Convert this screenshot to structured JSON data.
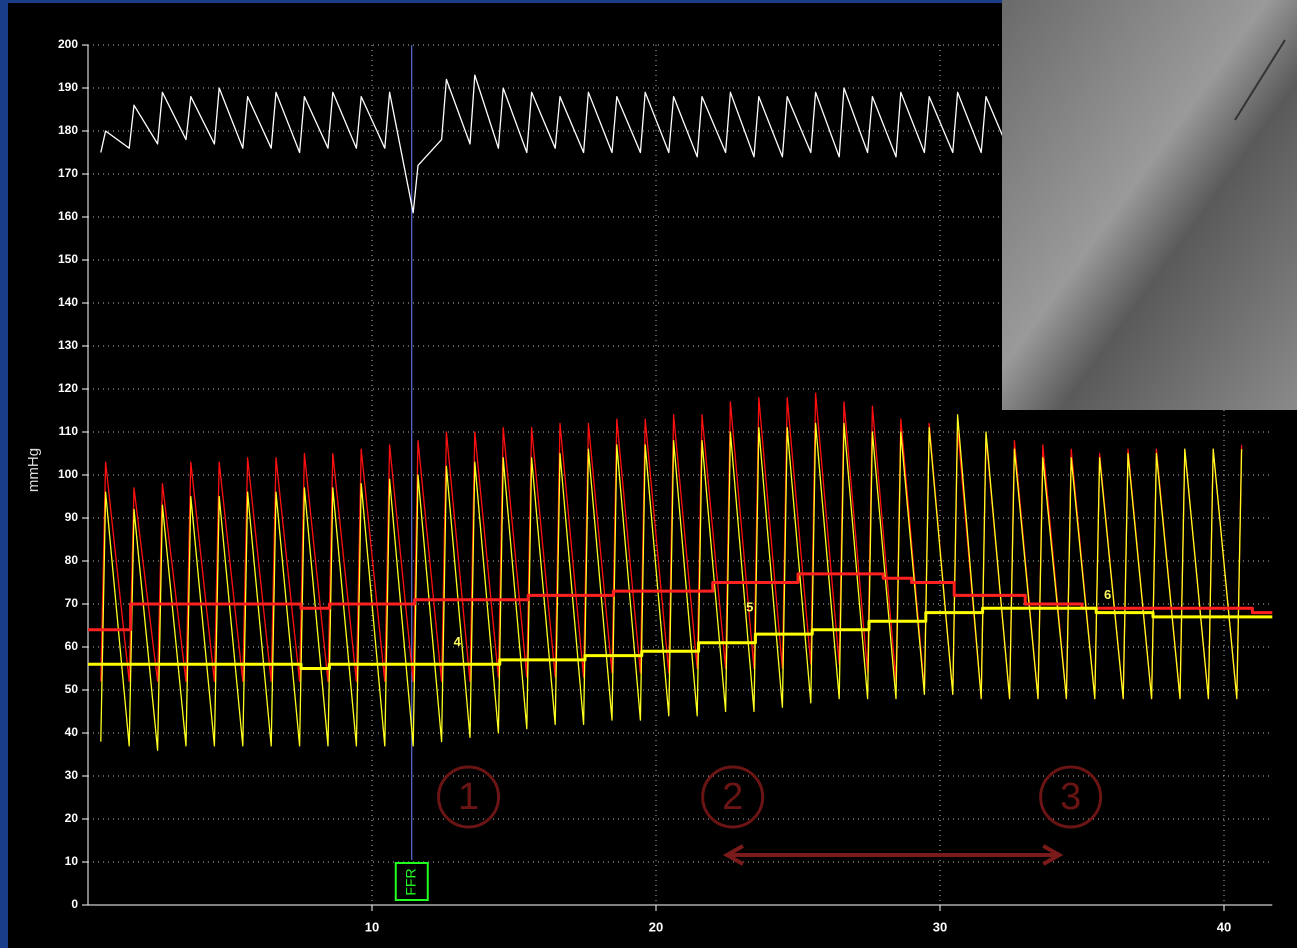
{
  "chart_data": {
    "type": "line",
    "y_label": "mmHg",
    "xlim": [
      0,
      41.7
    ],
    "ylim": [
      0,
      200
    ],
    "xticks": [
      10,
      20,
      30,
      40
    ],
    "yticks": [
      0,
      10,
      20,
      30,
      40,
      50,
      60,
      70,
      80,
      90,
      100,
      110,
      120,
      130,
      140,
      150,
      160,
      170,
      180,
      190,
      200
    ],
    "grid": true,
    "x": [
      0.45,
      0.62,
      1.45,
      1.62,
      2.45,
      2.62,
      3.45,
      3.62,
      4.45,
      4.62,
      5.45,
      5.62,
      6.45,
      6.62,
      7.45,
      7.62,
      8.45,
      8.62,
      9.45,
      9.62,
      10.45,
      10.62,
      11.45,
      11.62,
      12.45,
      12.62,
      13.45,
      13.62,
      14.45,
      14.62,
      15.45,
      15.62,
      16.45,
      16.62,
      17.45,
      17.62,
      18.45,
      18.62,
      19.45,
      19.62,
      20.45,
      20.62,
      21.45,
      21.62,
      22.45,
      22.62,
      23.45,
      23.62,
      24.45,
      24.62,
      25.45,
      25.62,
      26.45,
      26.62,
      27.45,
      27.62,
      28.45,
      28.62,
      29.45,
      29.62,
      30.45,
      30.62,
      31.45,
      31.62,
      32.45,
      32.62,
      33.45,
      33.62,
      34.45,
      34.62,
      35.45,
      35.62,
      36.45,
      36.62,
      37.45,
      37.62,
      38.45,
      38.62,
      39.45,
      39.62,
      40.45,
      40.62
    ],
    "series": [
      {
        "color": "#ffffff",
        "values": [
          175,
          180,
          176,
          186,
          177,
          189,
          178,
          188,
          177,
          190,
          176,
          188,
          176,
          189,
          175,
          188,
          176,
          189,
          176,
          188,
          176,
          189,
          161,
          172,
          178,
          192,
          177,
          193,
          176,
          190,
          175,
          189,
          176,
          188,
          175,
          189,
          175,
          188,
          175,
          189,
          175,
          188,
          174,
          188,
          175,
          189,
          174,
          188,
          174,
          188,
          175,
          189,
          174,
          190,
          175,
          188,
          174,
          189,
          175,
          188,
          175,
          189,
          175,
          188,
          175,
          188,
          null,
          null,
          null,
          null,
          null,
          null,
          null,
          null,
          null,
          null,
          null,
          null,
          null,
          null,
          null,
          null
        ]
      },
      {
        "color": "#ff1010",
        "values": [
          52,
          103,
          52,
          97,
          52,
          98,
          52,
          103,
          52,
          103,
          52,
          104,
          52,
          104,
          52,
          105,
          52,
          105,
          52,
          106,
          52,
          107,
          52,
          108,
          52,
          110,
          52,
          110,
          53,
          111,
          53,
          111,
          53,
          112,
          53,
          112,
          54,
          113,
          54,
          113,
          54,
          114,
          55,
          114,
          55,
          117,
          55,
          118,
          55,
          118,
          56,
          119,
          56,
          117,
          54,
          116,
          52,
          113,
          50,
          112,
          49,
          111,
          48,
          109,
          48,
          108,
          48,
          107,
          48,
          106,
          48,
          105,
          48,
          106,
          48,
          106,
          48,
          106,
          48,
          106,
          48,
          107
        ]
      },
      {
        "color": "#ffff20",
        "values": [
          38,
          96,
          37,
          92,
          36,
          93,
          37,
          95,
          37,
          95,
          37,
          96,
          37,
          96,
          37,
          97,
          37,
          97,
          37,
          98,
          37,
          99,
          37,
          100,
          38,
          102,
          39,
          103,
          40,
          104,
          41,
          104,
          42,
          105,
          42,
          106,
          43,
          107,
          43,
          107,
          44,
          108,
          44,
          108,
          45,
          110,
          45,
          111,
          46,
          111,
          47,
          112,
          48,
          112,
          48,
          110,
          48,
          110,
          49,
          111,
          49,
          114,
          48,
          110,
          48,
          106,
          48,
          104,
          48,
          104,
          48,
          104,
          48,
          105,
          48,
          105,
          48,
          106,
          48,
          106,
          48,
          106
        ]
      },
      {
        "color": "#ff2020",
        "x": [
          0,
          1.5,
          1.5,
          7.5,
          7.5,
          8.5,
          8.5,
          11.5,
          11.5,
          15.5,
          15.5,
          18.5,
          18.5,
          22,
          22,
          25,
          25,
          28,
          28,
          29,
          29,
          30.5,
          30.5,
          33,
          33,
          35,
          35,
          41,
          41,
          41.7
        ],
        "values": [
          64,
          64,
          70,
          70,
          69,
          69,
          70,
          70,
          71,
          71,
          72,
          72,
          73,
          73,
          75,
          75,
          77,
          77,
          76,
          76,
          75,
          75,
          72,
          72,
          70,
          70,
          69,
          69,
          68,
          68
        ]
      },
      {
        "color": "#ffff00",
        "x": [
          0,
          7.5,
          7.5,
          8.5,
          8.5,
          14.5,
          14.5,
          17.5,
          17.5,
          19.5,
          19.5,
          21.5,
          21.5,
          23.5,
          23.5,
          25.5,
          25.5,
          27.5,
          27.5,
          29.5,
          29.5,
          31.5,
          31.5,
          35.5,
          35.5,
          37.5,
          37.5,
          41.7
        ],
        "values": [
          56,
          56,
          55,
          55,
          56,
          56,
          57,
          57,
          58,
          58,
          59,
          59,
          61,
          61,
          63,
          63,
          64,
          64,
          66,
          66,
          68,
          68,
          69,
          69,
          68,
          68,
          67,
          67
        ]
      }
    ],
    "point_labels": [
      "4",
      "5",
      "6"
    ],
    "circled_labels": [
      "1",
      "2",
      "3"
    ],
    "marker_label": "FFR"
  }
}
